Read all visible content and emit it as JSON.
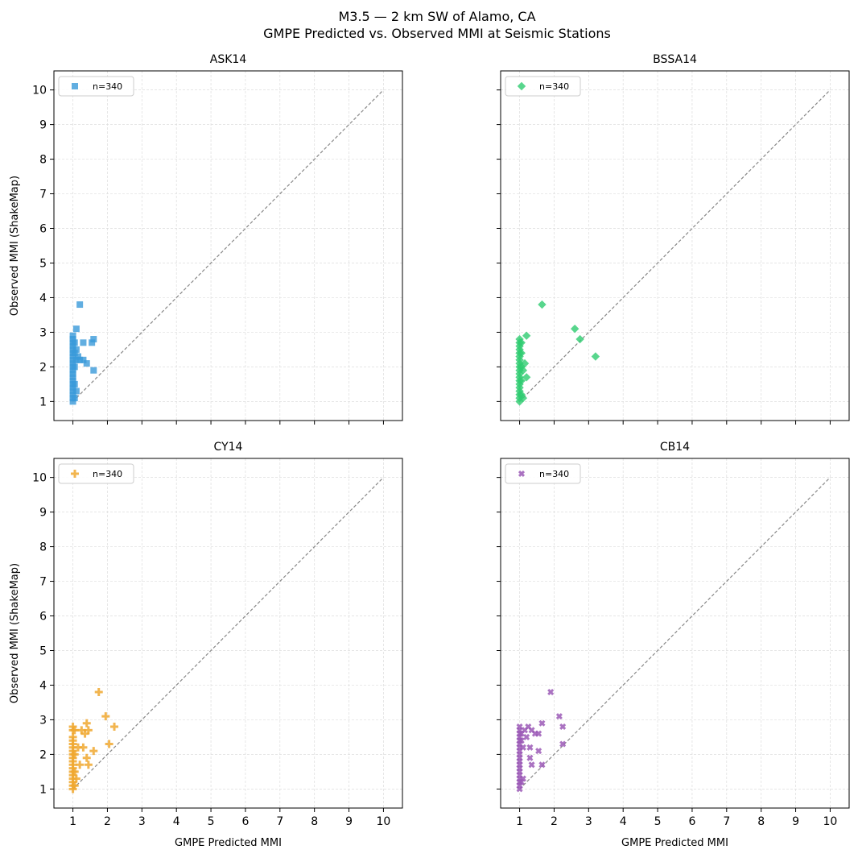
{
  "figure": {
    "title_line1": "M3.5 — 2 km SW of Alamo, CA",
    "title_line2": "GMPE Predicted vs. Observed MMI at Seismic Stations"
  },
  "chart_data": [
    {
      "type": "scatter",
      "title": "ASK14",
      "xlabel": "",
      "ylabel": "Observed MMI (ShakeMap)",
      "xlim": [
        0.45,
        10.55
      ],
      "ylim": [
        0.45,
        10.55
      ],
      "xticks": [
        1,
        2,
        3,
        4,
        5,
        6,
        7,
        8,
        9,
        10
      ],
      "yticks": [
        1,
        2,
        3,
        4,
        5,
        6,
        7,
        8,
        9,
        10
      ],
      "show_xtick_labels": false,
      "show_ytick_labels": true,
      "grid": true,
      "reference_line": [
        [
          1,
          1
        ],
        [
          10,
          10
        ]
      ],
      "legend": {
        "label": "n=340",
        "placement": "top-left"
      },
      "marker": "square",
      "color": "#3a9ad9",
      "points": [
        [
          1.0,
          1.0
        ],
        [
          1.0,
          1.1
        ],
        [
          1.0,
          1.2
        ],
        [
          1.0,
          1.3
        ],
        [
          1.0,
          1.4
        ],
        [
          1.0,
          1.5
        ],
        [
          1.0,
          1.6
        ],
        [
          1.0,
          1.7
        ],
        [
          1.0,
          1.8
        ],
        [
          1.0,
          1.9
        ],
        [
          1.0,
          2.0
        ],
        [
          1.0,
          2.1
        ],
        [
          1.0,
          2.2
        ],
        [
          1.0,
          2.3
        ],
        [
          1.0,
          2.4
        ],
        [
          1.0,
          2.5
        ],
        [
          1.0,
          2.6
        ],
        [
          1.0,
          2.7
        ],
        [
          1.0,
          2.8
        ],
        [
          1.0,
          2.9
        ],
        [
          1.05,
          1.1
        ],
        [
          1.05,
          1.5
        ],
        [
          1.05,
          2.0
        ],
        [
          1.05,
          2.4
        ],
        [
          1.05,
          2.7
        ],
        [
          1.1,
          1.3
        ],
        [
          1.1,
          2.2
        ],
        [
          1.1,
          2.5
        ],
        [
          1.1,
          3.1
        ],
        [
          1.15,
          2.3
        ],
        [
          1.2,
          3.8
        ],
        [
          1.2,
          2.2
        ],
        [
          1.3,
          2.7
        ],
        [
          1.3,
          2.2
        ],
        [
          1.4,
          2.1
        ],
        [
          1.55,
          2.7
        ],
        [
          1.6,
          2.8
        ],
        [
          1.6,
          1.9
        ]
      ]
    },
    {
      "type": "scatter",
      "title": "BSSA14",
      "xlabel": "",
      "ylabel": "",
      "xlim": [
        0.45,
        10.55
      ],
      "ylim": [
        0.45,
        10.55
      ],
      "xticks": [
        1,
        2,
        3,
        4,
        5,
        6,
        7,
        8,
        9,
        10
      ],
      "yticks": [
        1,
        2,
        3,
        4,
        5,
        6,
        7,
        8,
        9,
        10
      ],
      "show_xtick_labels": false,
      "show_ytick_labels": false,
      "grid": true,
      "reference_line": [
        [
          1,
          1
        ],
        [
          10,
          10
        ]
      ],
      "legend": {
        "label": "n=340",
        "placement": "top-left"
      },
      "marker": "diamond",
      "color": "#2ecc71",
      "points": [
        [
          1.0,
          1.0
        ],
        [
          1.0,
          1.1
        ],
        [
          1.0,
          1.2
        ],
        [
          1.0,
          1.3
        ],
        [
          1.0,
          1.4
        ],
        [
          1.0,
          1.5
        ],
        [
          1.0,
          1.6
        ],
        [
          1.0,
          1.7
        ],
        [
          1.0,
          1.8
        ],
        [
          1.0,
          1.9
        ],
        [
          1.0,
          2.0
        ],
        [
          1.0,
          2.1
        ],
        [
          1.0,
          2.2
        ],
        [
          1.0,
          2.3
        ],
        [
          1.0,
          2.4
        ],
        [
          1.0,
          2.5
        ],
        [
          1.0,
          2.6
        ],
        [
          1.0,
          2.7
        ],
        [
          1.0,
          2.8
        ],
        [
          1.05,
          1.2
        ],
        [
          1.05,
          1.6
        ],
        [
          1.05,
          2.0
        ],
        [
          1.05,
          2.4
        ],
        [
          1.05,
          2.7
        ],
        [
          1.1,
          1.1
        ],
        [
          1.1,
          1.9
        ],
        [
          1.15,
          2.1
        ],
        [
          1.2,
          2.9
        ],
        [
          1.2,
          1.7
        ],
        [
          1.65,
          3.8
        ],
        [
          2.6,
          3.1
        ],
        [
          2.75,
          2.8
        ],
        [
          3.2,
          2.3
        ]
      ]
    },
    {
      "type": "scatter",
      "title": "CY14",
      "xlabel": "GMPE Predicted MMI",
      "ylabel": "Observed MMI (ShakeMap)",
      "xlim": [
        0.45,
        10.55
      ],
      "ylim": [
        0.45,
        10.55
      ],
      "xticks": [
        1,
        2,
        3,
        4,
        5,
        6,
        7,
        8,
        9,
        10
      ],
      "yticks": [
        1,
        2,
        3,
        4,
        5,
        6,
        7,
        8,
        9,
        10
      ],
      "show_xtick_labels": true,
      "show_ytick_labels": true,
      "grid": true,
      "reference_line": [
        [
          1,
          1
        ],
        [
          10,
          10
        ]
      ],
      "legend": {
        "label": "n=340",
        "placement": "top-left"
      },
      "marker": "plus",
      "color": "#f0a830",
      "points": [
        [
          1.0,
          1.0
        ],
        [
          1.0,
          1.1
        ],
        [
          1.0,
          1.2
        ],
        [
          1.0,
          1.3
        ],
        [
          1.0,
          1.4
        ],
        [
          1.0,
          1.5
        ],
        [
          1.0,
          1.6
        ],
        [
          1.0,
          1.7
        ],
        [
          1.0,
          1.8
        ],
        [
          1.0,
          1.9
        ],
        [
          1.0,
          2.0
        ],
        [
          1.0,
          2.1
        ],
        [
          1.0,
          2.2
        ],
        [
          1.0,
          2.3
        ],
        [
          1.0,
          2.4
        ],
        [
          1.0,
          2.5
        ],
        [
          1.0,
          2.7
        ],
        [
          1.0,
          2.8
        ],
        [
          1.05,
          1.1
        ],
        [
          1.05,
          1.5
        ],
        [
          1.05,
          2.0
        ],
        [
          1.05,
          2.7
        ],
        [
          1.1,
          1.3
        ],
        [
          1.15,
          2.2
        ],
        [
          1.2,
          1.7
        ],
        [
          1.25,
          2.7
        ],
        [
          1.3,
          2.2
        ],
        [
          1.35,
          2.6
        ],
        [
          1.4,
          2.9
        ],
        [
          1.4,
          1.9
        ],
        [
          1.45,
          2.7
        ],
        [
          1.45,
          1.7
        ],
        [
          1.6,
          2.1
        ],
        [
          1.75,
          3.8
        ],
        [
          1.95,
          3.1
        ],
        [
          2.05,
          2.3
        ],
        [
          2.2,
          2.8
        ]
      ]
    },
    {
      "type": "scatter",
      "title": "CB14",
      "xlabel": "GMPE Predicted MMI",
      "ylabel": "",
      "xlim": [
        0.45,
        10.55
      ],
      "ylim": [
        0.45,
        10.55
      ],
      "xticks": [
        1,
        2,
        3,
        4,
        5,
        6,
        7,
        8,
        9,
        10
      ],
      "yticks": [
        1,
        2,
        3,
        4,
        5,
        6,
        7,
        8,
        9,
        10
      ],
      "show_xtick_labels": true,
      "show_ytick_labels": false,
      "grid": true,
      "reference_line": [
        [
          1,
          1
        ],
        [
          10,
          10
        ]
      ],
      "legend": {
        "label": "n=340",
        "placement": "top-left"
      },
      "marker": "x",
      "color": "#9b59b6",
      "points": [
        [
          1.0,
          1.0
        ],
        [
          1.0,
          1.1
        ],
        [
          1.0,
          1.2
        ],
        [
          1.0,
          1.3
        ],
        [
          1.0,
          1.4
        ],
        [
          1.0,
          1.5
        ],
        [
          1.0,
          1.6
        ],
        [
          1.0,
          1.7
        ],
        [
          1.0,
          1.8
        ],
        [
          1.0,
          1.9
        ],
        [
          1.0,
          2.0
        ],
        [
          1.0,
          2.1
        ],
        [
          1.0,
          2.2
        ],
        [
          1.0,
          2.3
        ],
        [
          1.0,
          2.4
        ],
        [
          1.0,
          2.5
        ],
        [
          1.0,
          2.6
        ],
        [
          1.0,
          2.7
        ],
        [
          1.0,
          2.8
        ],
        [
          1.05,
          1.2
        ],
        [
          1.05,
          2.4
        ],
        [
          1.05,
          2.6
        ],
        [
          1.1,
          1.3
        ],
        [
          1.1,
          2.2
        ],
        [
          1.15,
          2.7
        ],
        [
          1.2,
          2.5
        ],
        [
          1.25,
          2.8
        ],
        [
          1.3,
          1.9
        ],
        [
          1.3,
          2.2
        ],
        [
          1.35,
          2.7
        ],
        [
          1.35,
          1.7
        ],
        [
          1.45,
          2.6
        ],
        [
          1.55,
          2.6
        ],
        [
          1.55,
          2.1
        ],
        [
          1.65,
          2.9
        ],
        [
          1.65,
          1.7
        ],
        [
          1.9,
          3.8
        ],
        [
          2.15,
          3.1
        ],
        [
          2.25,
          2.8
        ],
        [
          2.25,
          2.3
        ]
      ]
    }
  ]
}
